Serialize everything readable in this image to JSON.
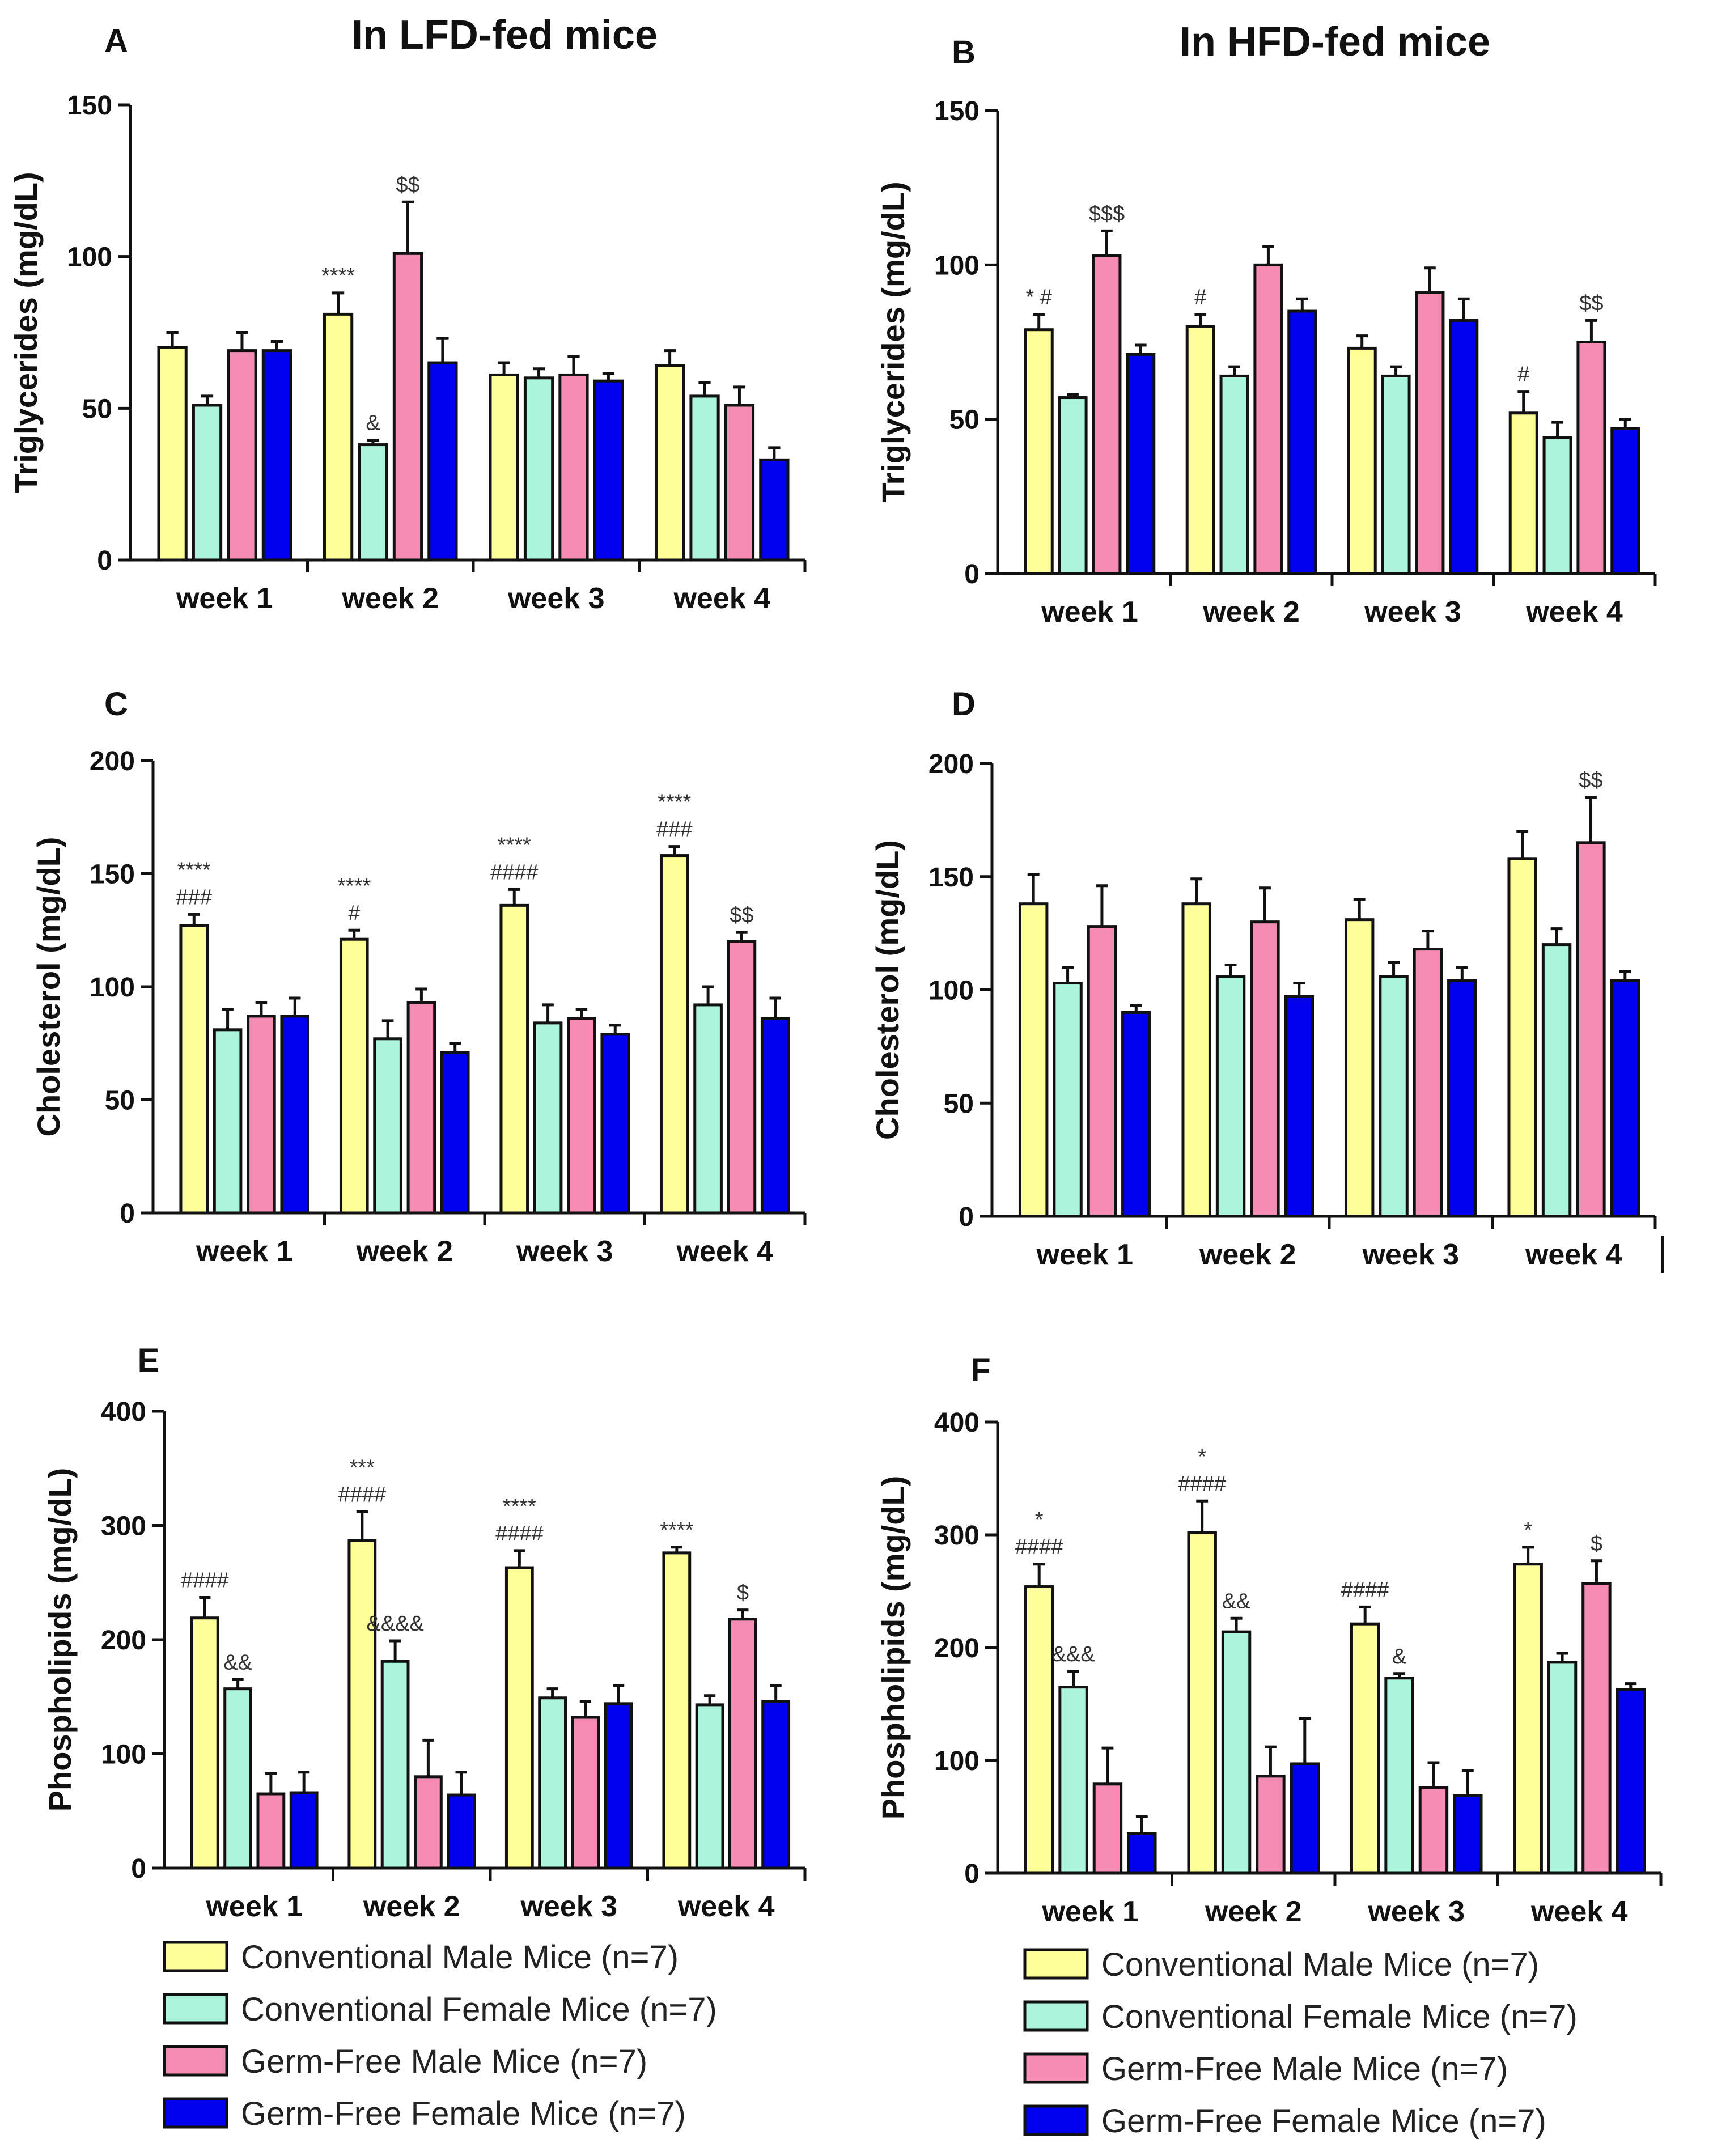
{
  "titles": {
    "lfd": "In LFD-fed mice",
    "hfd": "In HFD-fed mice"
  },
  "legend": [
    {
      "label": "Conventional Male Mice (n=7)",
      "color": "#ffff99"
    },
    {
      "label": "Conventional Female Mice (n=7)",
      "color": "#aaf5dc"
    },
    {
      "label": "Germ-Free Male Mice (n=7)",
      "color": "#f58cb4"
    },
    {
      "label": "Germ-Free Female Mice (n=7)",
      "color": "#0000ee"
    }
  ],
  "chart_data": [
    {
      "panel": "A",
      "type": "bar",
      "title": "In LFD-fed mice",
      "ylabel": "Triglycerides (mg/dL)",
      "ylim": [
        0,
        150
      ],
      "yticks": [
        0,
        50,
        100,
        150
      ],
      "categories": [
        "week 1",
        "week 2",
        "week 3",
        "week 4"
      ],
      "series": [
        {
          "name": "Conventional Male Mice (n=7)",
          "values": [
            70,
            81,
            61,
            64
          ],
          "errors": [
            5,
            7,
            4,
            5
          ],
          "labels": [
            "",
            "****",
            "",
            ""
          ]
        },
        {
          "name": "Conventional Female Mice (n=7)",
          "values": [
            51,
            38,
            60,
            54
          ],
          "errors": [
            3,
            1.5,
            3,
            4.5
          ],
          "labels": [
            "",
            "&",
            "",
            ""
          ]
        },
        {
          "name": "Germ-Free Male Mice (n=7)",
          "values": [
            69,
            101,
            61,
            51
          ],
          "errors": [
            6,
            17,
            6,
            6
          ],
          "labels": [
            "",
            "$$",
            "",
            ""
          ]
        },
        {
          "name": "Germ-Free Female Mice (n=7)",
          "values": [
            69,
            65,
            59,
            33
          ],
          "errors": [
            3,
            8,
            2.5,
            4
          ],
          "labels": [
            "",
            "",
            "",
            ""
          ]
        }
      ]
    },
    {
      "panel": "B",
      "type": "bar",
      "title": "In HFD-fed mice",
      "ylabel": "Triglycerides (mg/dL)",
      "ylim": [
        0,
        150
      ],
      "yticks": [
        0,
        50,
        100,
        150
      ],
      "categories": [
        "week 1",
        "week 2",
        "week 3",
        "week 4"
      ],
      "series": [
        {
          "name": "Conventional Male Mice (n=7)",
          "values": [
            79,
            80,
            73,
            52
          ],
          "errors": [
            5,
            4,
            4,
            7
          ],
          "labels": [
            "* #",
            "#",
            "",
            "#"
          ]
        },
        {
          "name": "Conventional Female Mice (n=7)",
          "values": [
            57,
            64,
            64,
            44
          ],
          "errors": [
            1,
            3,
            3,
            5
          ],
          "labels": [
            "",
            "",
            "",
            ""
          ]
        },
        {
          "name": "Germ-Free Male Mice (n=7)",
          "values": [
            103,
            100,
            91,
            75
          ],
          "errors": [
            8,
            6,
            8,
            7
          ],
          "labels": [
            "$$$",
            "",
            "",
            "$$"
          ]
        },
        {
          "name": "Germ-Free Female Mice (n=7)",
          "values": [
            71,
            85,
            82,
            47
          ],
          "errors": [
            3,
            4,
            7,
            3
          ],
          "labels": [
            "",
            "",
            "",
            ""
          ]
        }
      ]
    },
    {
      "panel": "C",
      "type": "bar",
      "ylabel": "Cholesterol (mg/dL)",
      "ylim": [
        0,
        200
      ],
      "yticks": [
        0,
        50,
        100,
        150,
        200
      ],
      "categories": [
        "week 1",
        "week 2",
        "week 3",
        "week 4"
      ],
      "series": [
        {
          "name": "Conventional Male Mice (n=7)",
          "values": [
            127,
            121,
            136,
            158
          ],
          "errors": [
            5,
            4,
            7,
            4
          ],
          "labels": [
            "****|###",
            "****|#",
            "****|####",
            "****|###"
          ]
        },
        {
          "name": "Conventional Female Mice (n=7)",
          "values": [
            81,
            77,
            84,
            92
          ],
          "errors": [
            9,
            8,
            8,
            8
          ],
          "labels": [
            "",
            "",
            "",
            ""
          ]
        },
        {
          "name": "Germ-Free Male Mice (n=7)",
          "values": [
            87,
            93,
            86,
            120
          ],
          "errors": [
            6,
            6,
            4,
            4
          ],
          "labels": [
            "",
            "",
            "",
            "$$"
          ]
        },
        {
          "name": "Germ-Free Female Mice (n=7)",
          "values": [
            87,
            71,
            79,
            86
          ],
          "errors": [
            8,
            4,
            4,
            9
          ],
          "labels": [
            "",
            "",
            "",
            ""
          ]
        }
      ]
    },
    {
      "panel": "D",
      "type": "bar",
      "ylabel": "Cholesterol (mg/dL)",
      "ylim": [
        0,
        200
      ],
      "yticks": [
        0,
        50,
        100,
        150,
        200
      ],
      "categories": [
        "week 1",
        "week 2",
        "week 3",
        "week 4"
      ],
      "series": [
        {
          "name": "Conventional Male Mice (n=7)",
          "values": [
            138,
            138,
            131,
            158
          ],
          "errors": [
            13,
            11,
            9,
            12
          ],
          "labels": [
            "",
            "",
            "",
            ""
          ]
        },
        {
          "name": "Conventional Female Mice (n=7)",
          "values": [
            103,
            106,
            106,
            120
          ],
          "errors": [
            7,
            5,
            6,
            7
          ],
          "labels": [
            "",
            "",
            "",
            ""
          ]
        },
        {
          "name": "Germ-Free Male Mice (n=7)",
          "values": [
            128,
            130,
            118,
            165
          ],
          "errors": [
            18,
            15,
            8,
            20
          ],
          "labels": [
            "",
            "",
            "",
            "$$"
          ]
        },
        {
          "name": "Germ-Free Female Mice (n=7)",
          "values": [
            90,
            97,
            104,
            104
          ],
          "errors": [
            3,
            6,
            6,
            4
          ],
          "labels": [
            "",
            "",
            "",
            ""
          ]
        }
      ]
    },
    {
      "panel": "E",
      "type": "bar",
      "ylabel": "Phospholipids (mg/dL)",
      "ylim": [
        0,
        400
      ],
      "yticks": [
        0,
        100,
        200,
        300,
        400
      ],
      "categories": [
        "week 1",
        "week 2",
        "week 3",
        "week 4"
      ],
      "series": [
        {
          "name": "Conventional Male Mice (n=7)",
          "values": [
            219,
            287,
            263,
            276
          ],
          "errors": [
            18,
            25,
            15,
            5
          ],
          "labels": [
            "####",
            "***|####",
            "****|####",
            "****"
          ]
        },
        {
          "name": "Conventional Female Mice (n=7)",
          "values": [
            157,
            181,
            149,
            143
          ],
          "errors": [
            8,
            18,
            8,
            8
          ],
          "labels": [
            "&&",
            "&&&&",
            "",
            ""
          ]
        },
        {
          "name": "Germ-Free Male Mice (n=7)",
          "values": [
            65,
            80,
            132,
            218
          ],
          "errors": [
            18,
            32,
            14,
            8
          ],
          "labels": [
            "",
            "",
            "",
            "$"
          ]
        },
        {
          "name": "Germ-Free Female Mice (n=7)",
          "values": [
            66,
            64,
            144,
            146
          ],
          "errors": [
            18,
            20,
            16,
            14
          ],
          "labels": [
            "",
            "",
            "",
            ""
          ]
        }
      ]
    },
    {
      "panel": "F",
      "type": "bar",
      "ylabel": "Phospholipids (mg/dL)",
      "ylim": [
        0,
        400
      ],
      "yticks": [
        0,
        100,
        200,
        300,
        400
      ],
      "categories": [
        "week 1",
        "week 2",
        "week 3",
        "week 4"
      ],
      "series": [
        {
          "name": "Conventional Male Mice (n=7)",
          "values": [
            254,
            302,
            221,
            274
          ],
          "errors": [
            20,
            28,
            15,
            15
          ],
          "labels": [
            "*|####",
            "*|####",
            "####",
            "*"
          ]
        },
        {
          "name": "Conventional Female Mice (n=7)",
          "values": [
            165,
            214,
            173,
            187
          ],
          "errors": [
            14,
            12,
            4,
            8
          ],
          "labels": [
            "&&&",
            "&&",
            "&",
            ""
          ]
        },
        {
          "name": "Germ-Free Male Mice (n=7)",
          "values": [
            79,
            86,
            76,
            257
          ],
          "errors": [
            32,
            26,
            22,
            20
          ],
          "labels": [
            "",
            "",
            "",
            "$"
          ]
        },
        {
          "name": "Germ-Free Female Mice (n=7)",
          "values": [
            35,
            97,
            69,
            163
          ],
          "errors": [
            15,
            40,
            22,
            5
          ],
          "labels": [
            "",
            "",
            "",
            ""
          ]
        }
      ]
    }
  ]
}
